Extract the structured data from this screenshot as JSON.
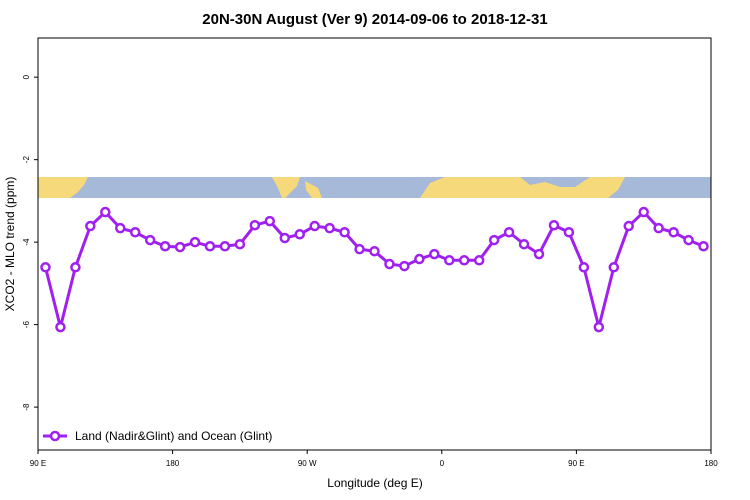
{
  "chart_data": {
    "type": "line",
    "title": "20N-30N August (Ver 9)   2014-09-06 to 2018-12-31",
    "x_label": "Longitude (deg E)",
    "y_label": "XCO2 - MLO trend (ppm)",
    "x": [
      95,
      105,
      115,
      125,
      135,
      145,
      155,
      165,
      175,
      185,
      195,
      205,
      215,
      225,
      235,
      245,
      255,
      265,
      275,
      285,
      295,
      305,
      315,
      325,
      335,
      345,
      355,
      365,
      375,
      385,
      395,
      405,
      415,
      425,
      435,
      445,
      455,
      465,
      475,
      485,
      495,
      505,
      515,
      525,
      535
    ],
    "series": [
      {
        "name": "Land (Nadir&Glint) and Ocean (Glint)",
        "color": "#a020f0",
        "values": [
          -4.61,
          -6.06,
          -4.61,
          -3.61,
          -3.27,
          -3.66,
          -3.76,
          -3.95,
          -4.1,
          -4.12,
          -4.0,
          -4.1,
          -4.1,
          -4.05,
          -3.59,
          -3.49,
          -3.9,
          -3.81,
          -3.61,
          -3.66,
          -3.76,
          -4.17,
          -4.22,
          -4.53,
          -4.58,
          -4.41,
          -4.29,
          -4.44,
          -4.44,
          -4.44,
          -3.95,
          -3.76,
          -4.05,
          -4.29,
          -3.59,
          -3.76,
          -4.61,
          -6.06,
          -4.61,
          -3.61,
          -3.27,
          -3.66,
          -3.76,
          -3.95,
          -4.1
        ]
      }
    ],
    "xlim": [
      90,
      540
    ],
    "xticks": [
      {
        "value": 90,
        "label": "90 E"
      },
      {
        "value": 180,
        "label": "180"
      },
      {
        "value": 270,
        "label": "90 W"
      },
      {
        "value": 360,
        "label": "0"
      },
      {
        "value": 450,
        "label": "90 E"
      },
      {
        "value": 540,
        "label": "180"
      }
    ],
    "ylim": [
      -9.04,
      0.95
    ],
    "yticks": [
      0,
      -2,
      -4,
      -6,
      -8
    ],
    "legend": "bottom-left"
  }
}
